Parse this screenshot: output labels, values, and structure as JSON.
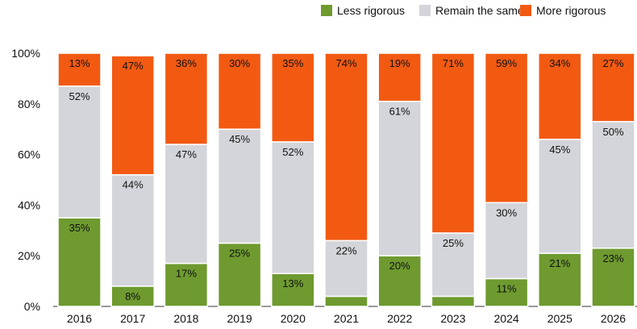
{
  "chart_data": {
    "type": "bar",
    "stacked": true,
    "categories": [
      "2016",
      "2017",
      "2018",
      "2019",
      "2020",
      "2021",
      "2022",
      "2023",
      "2024",
      "2025",
      "2026"
    ],
    "series": [
      {
        "name": "Less rigorous",
        "color": "#6e9a2f",
        "values": [
          35,
          8,
          17,
          25,
          13,
          4,
          20,
          4,
          11,
          21,
          23
        ],
        "labels": [
          "35%",
          "8%",
          "17%",
          "25%",
          "13%",
          "",
          "20%",
          "",
          "11%",
          "21%",
          "23%"
        ]
      },
      {
        "name": "Remain the same",
        "color": "#d4d5da",
        "values": [
          52,
          44,
          47,
          45,
          52,
          22,
          61,
          25,
          30,
          45,
          50
        ],
        "labels": [
          "52%",
          "44%",
          "47%",
          "45%",
          "52%",
          "22%",
          "61%",
          "25%",
          "30%",
          "45%",
          "50%"
        ]
      },
      {
        "name": "More rigorous",
        "color": "#f25a12",
        "values": [
          13,
          47,
          36,
          30,
          35,
          74,
          19,
          71,
          59,
          34,
          27
        ],
        "labels": [
          "13%",
          "47%",
          "36%",
          "30%",
          "35%",
          "74%",
          "19%",
          "71%",
          "59%",
          "34%",
          "27%"
        ]
      }
    ],
    "ylim": [
      0,
      100
    ],
    "yticks": [
      "0%",
      "20%",
      "40%",
      "60%",
      "80%",
      "100%"
    ],
    "legend_position": "top-right",
    "grid": false
  }
}
